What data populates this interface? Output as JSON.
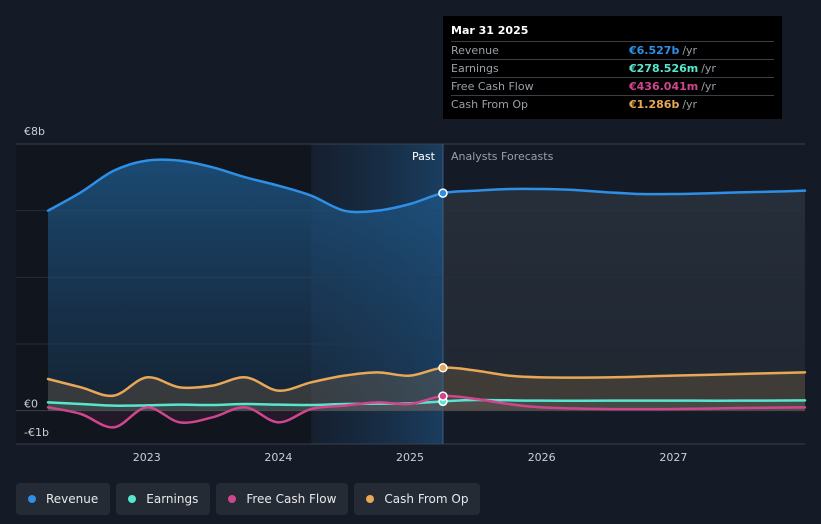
{
  "chart_data": {
    "type": "area",
    "currency": "€",
    "y_tick_labels": [
      "€8b",
      "€0",
      "-€1b"
    ],
    "ylim": [
      -1,
      8
    ],
    "xlim": [
      2022.25,
      2028.0
    ],
    "x_tick_labels": [
      "2023",
      "2024",
      "2025",
      "2026",
      "2027"
    ],
    "x_ticks": [
      2023,
      2024,
      2025,
      2026,
      2027
    ],
    "past_label": "Past",
    "forecast_label": "Analysts Forecasts",
    "divider_x": 2025.25,
    "shaded_start_x": 2024.25,
    "series": [
      {
        "name": "Revenue",
        "color": "#2d8fe6",
        "x": [
          2022.25,
          2022.5,
          2022.75,
          2023.0,
          2023.25,
          2023.5,
          2023.75,
          2024.0,
          2024.25,
          2024.5,
          2024.75,
          2025.0,
          2025.25,
          2025.5,
          2025.75,
          2026.0,
          2026.25,
          2026.5,
          2026.75,
          2027.0,
          2027.25,
          2027.5,
          2027.75,
          2028.0
        ],
        "values": [
          6.0,
          6.55,
          7.2,
          7.5,
          7.5,
          7.3,
          7.0,
          6.75,
          6.45,
          6.0,
          6.0,
          6.2,
          6.527,
          6.6,
          6.65,
          6.65,
          6.62,
          6.55,
          6.5,
          6.5,
          6.52,
          6.55,
          6.57,
          6.6
        ]
      },
      {
        "name": "Earnings",
        "color": "#58e6d0",
        "x": [
          2022.25,
          2022.5,
          2022.75,
          2023.0,
          2023.25,
          2023.5,
          2023.75,
          2024.0,
          2024.25,
          2024.5,
          2024.75,
          2025.0,
          2025.25,
          2025.5,
          2026.0,
          2026.5,
          2027.0,
          2027.5,
          2028.0
        ],
        "values": [
          0.25,
          0.2,
          0.15,
          0.16,
          0.18,
          0.17,
          0.2,
          0.18,
          0.17,
          0.2,
          0.21,
          0.22,
          0.2785,
          0.32,
          0.3,
          0.3,
          0.3,
          0.3,
          0.31
        ]
      },
      {
        "name": "Free Cash Flow",
        "color": "#d0468e",
        "x": [
          2022.25,
          2022.5,
          2022.75,
          2023.0,
          2023.25,
          2023.5,
          2023.75,
          2024.0,
          2024.25,
          2024.5,
          2024.75,
          2025.0,
          2025.25,
          2025.5,
          2025.75,
          2026.0,
          2026.5,
          2027.0,
          2027.5,
          2028.0
        ],
        "values": [
          0.1,
          -0.1,
          -0.5,
          0.1,
          -0.35,
          -0.2,
          0.1,
          -0.35,
          0.05,
          0.15,
          0.25,
          0.2,
          0.436,
          0.35,
          0.2,
          0.1,
          0.05,
          0.05,
          0.08,
          0.1
        ]
      },
      {
        "name": "Cash From Op",
        "color": "#e8a857",
        "x": [
          2022.25,
          2022.5,
          2022.75,
          2023.0,
          2023.25,
          2023.5,
          2023.75,
          2024.0,
          2024.25,
          2024.5,
          2024.75,
          2025.0,
          2025.25,
          2025.5,
          2025.75,
          2026.0,
          2026.5,
          2027.0,
          2027.5,
          2028.0
        ],
        "values": [
          0.95,
          0.7,
          0.45,
          1.0,
          0.7,
          0.75,
          1.0,
          0.6,
          0.85,
          1.05,
          1.15,
          1.05,
          1.286,
          1.2,
          1.05,
          1.0,
          1.0,
          1.05,
          1.1,
          1.15
        ]
      }
    ]
  },
  "tooltip": {
    "date": "Mar 31 2025",
    "rows": [
      {
        "label": "Revenue",
        "value": "€6.527b",
        "unit": "/yr",
        "color": "#2d8fe6"
      },
      {
        "label": "Earnings",
        "value": "€278.526m",
        "unit": "/yr",
        "color": "#58e6d0"
      },
      {
        "label": "Free Cash Flow",
        "value": "€436.041m",
        "unit": "/yr",
        "color": "#d0468e"
      },
      {
        "label": "Cash From Op",
        "value": "€1.286b",
        "unit": "/yr",
        "color": "#e8a857"
      }
    ]
  },
  "legend": [
    {
      "label": "Revenue",
      "color": "#2d8fe6"
    },
    {
      "label": "Earnings",
      "color": "#58e6d0"
    },
    {
      "label": "Free Cash Flow",
      "color": "#d0468e"
    },
    {
      "label": "Cash From Op",
      "color": "#e8a857"
    }
  ]
}
